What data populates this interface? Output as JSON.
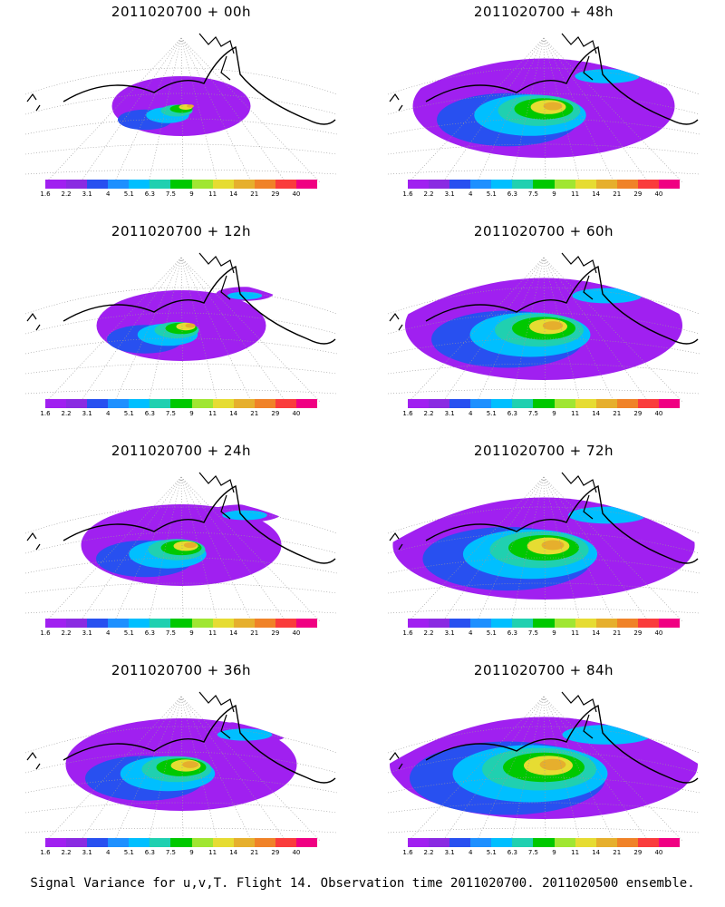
{
  "colorbar": {
    "labels": [
      "1.6",
      "2.2",
      "3.1",
      "4",
      "5.1",
      "6.3",
      "7.5",
      "9",
      "11",
      "14",
      "21",
      "29",
      "40"
    ],
    "colors": [
      "#a020f0",
      "#8a2be2",
      "#2850f0",
      "#1e90ff",
      "#00bfff",
      "#20d0b0",
      "#00c800",
      "#a0e632",
      "#e6dc32",
      "#e6af2d",
      "#f08228",
      "#fa3c3c",
      "#f00082"
    ]
  },
  "panels": [
    {
      "title": "2011020700 + 00h",
      "intensity": 0.25
    },
    {
      "title": "2011020700 + 48h",
      "intensity": 0.65
    },
    {
      "title": "2011020700 + 12h",
      "intensity": 0.35
    },
    {
      "title": "2011020700 + 60h",
      "intensity": 0.7
    },
    {
      "title": "2011020700 + 24h",
      "intensity": 0.45
    },
    {
      "title": "2011020700 + 72h",
      "intensity": 0.78
    },
    {
      "title": "2011020700 + 36h",
      "intensity": 0.55
    },
    {
      "title": "2011020700 + 84h",
      "intensity": 0.9
    }
  ],
  "caption": "Signal Variance for u,v,T. Flight 14. Observation time 2011020700. 2011020500 ensemble."
}
